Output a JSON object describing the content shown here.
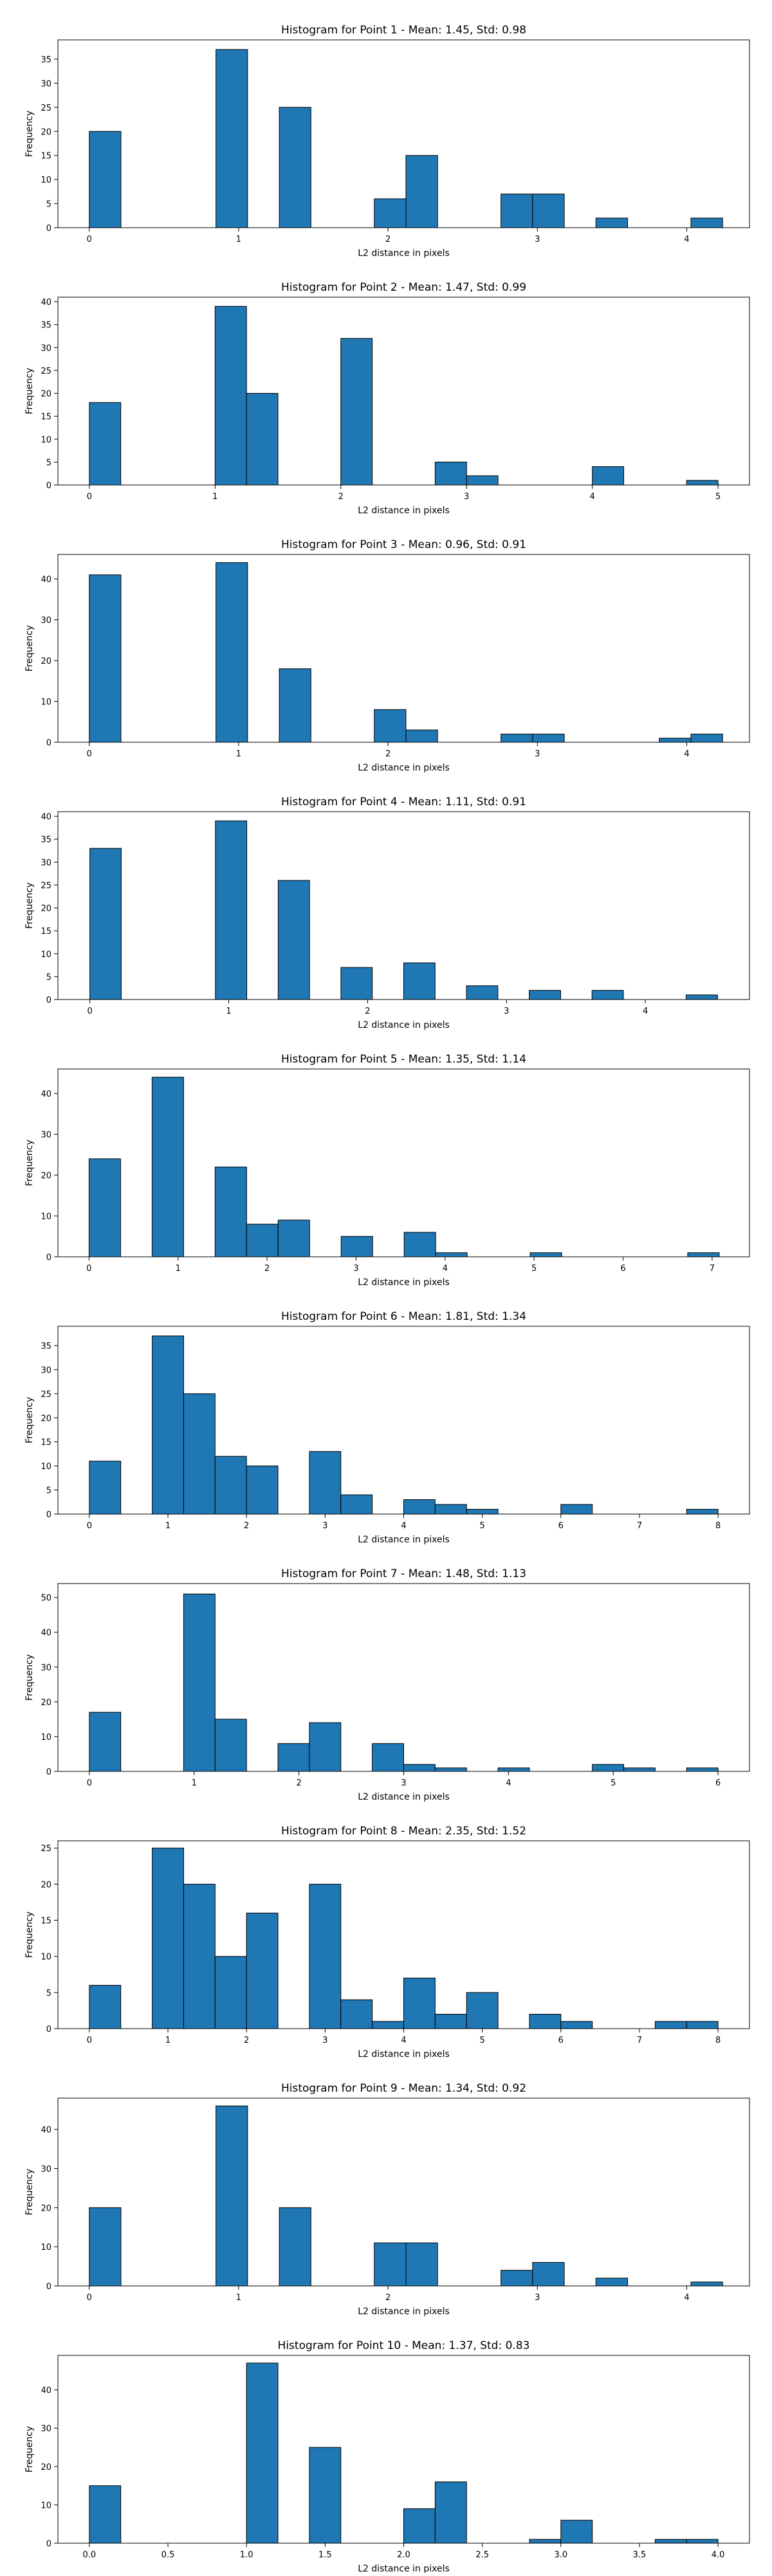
{
  "figure": {
    "background": "#ffffff",
    "bar_color": "#1f77b4",
    "edge_color": "#000000"
  },
  "chart_data": [
    {
      "type": "bar",
      "title": "Histogram for Point 1 - Mean: 1.45, Std: 0.98",
      "xlabel": "L2 distance in pixels",
      "ylabel": "Frequency",
      "xlim": [
        -0.21,
        4.42
      ],
      "ylim": [
        0,
        39
      ],
      "xticks": [
        0,
        1,
        2,
        3,
        4
      ],
      "xtick_labels": [
        "0",
        "1",
        "2",
        "3",
        "4"
      ],
      "yticks": [
        0,
        5,
        10,
        15,
        20,
        25,
        30,
        35
      ],
      "bin_edges": [
        0,
        0.212,
        0.424,
        0.636,
        0.848,
        1.06,
        1.272,
        1.484,
        1.696,
        1.908,
        2.12,
        2.332,
        2.544,
        2.756,
        2.968,
        3.18,
        3.392,
        3.604,
        3.816,
        4.028,
        4.24
      ],
      "values": [
        20,
        0,
        0,
        0,
        37,
        0,
        25,
        0,
        0,
        6,
        15,
        0,
        0,
        7,
        7,
        0,
        2,
        0,
        0,
        2
      ],
      "grid": false,
      "legend": "none"
    },
    {
      "type": "bar",
      "title": "Histogram for Point 2 - Mean: 1.47, Std: 0.99",
      "xlabel": "L2 distance in pixels",
      "ylabel": "Frequency",
      "xlim": [
        -0.25,
        5.25
      ],
      "ylim": [
        0,
        41
      ],
      "xticks": [
        0,
        1,
        2,
        3,
        4,
        5
      ],
      "xtick_labels": [
        "0",
        "1",
        "2",
        "3",
        "4",
        "5"
      ],
      "yticks": [
        0,
        5,
        10,
        15,
        20,
        25,
        30,
        35,
        40
      ],
      "bin_edges": [
        0,
        0.25,
        0.5,
        0.75,
        1,
        1.25,
        1.5,
        1.75,
        2,
        2.25,
        2.5,
        2.75,
        3,
        3.25,
        3.5,
        3.75,
        4,
        4.25,
        4.5,
        4.75,
        5
      ],
      "values": [
        18,
        0,
        0,
        0,
        39,
        20,
        0,
        0,
        32,
        0,
        0,
        5,
        2,
        0,
        0,
        0,
        4,
        0,
        0,
        1
      ],
      "grid": false,
      "legend": "none"
    },
    {
      "type": "bar",
      "title": "Histogram for Point 3 - Mean: 0.96, Std: 0.91",
      "xlabel": "L2 distance in pixels",
      "ylabel": "Frequency",
      "xlim": [
        -0.21,
        4.42
      ],
      "ylim": [
        0,
        46
      ],
      "xticks": [
        0,
        1,
        2,
        3,
        4
      ],
      "xtick_labels": [
        "0",
        "1",
        "2",
        "3",
        "4"
      ],
      "yticks": [
        0,
        10,
        20,
        30,
        40
      ],
      "bin_edges": [
        0,
        0.212,
        0.424,
        0.636,
        0.848,
        1.06,
        1.272,
        1.484,
        1.696,
        1.908,
        2.12,
        2.332,
        2.544,
        2.756,
        2.968,
        3.18,
        3.392,
        3.604,
        3.816,
        4.028,
        4.24
      ],
      "values": [
        41,
        0,
        0,
        0,
        44,
        0,
        18,
        0,
        0,
        8,
        3,
        0,
        0,
        2,
        2,
        0,
        0,
        0,
        1,
        2
      ],
      "grid": false,
      "legend": "none"
    },
    {
      "type": "bar",
      "title": "Histogram for Point 4 - Mean: 1.11, Std: 0.91",
      "xlabel": "L2 distance in pixels",
      "ylabel": "Frequency",
      "xlim": [
        -0.23,
        4.75
      ],
      "ylim": [
        0,
        41
      ],
      "xticks": [
        0,
        1,
        2,
        3,
        4
      ],
      "xtick_labels": [
        "0",
        "1",
        "2",
        "3",
        "4"
      ],
      "yticks": [
        0,
        5,
        10,
        15,
        20,
        25,
        30,
        35,
        40
      ],
      "bin_edges": [
        0,
        0.226,
        0.452,
        0.678,
        0.904,
        1.13,
        1.356,
        1.582,
        1.808,
        2.034,
        2.26,
        2.486,
        2.712,
        2.938,
        3.164,
        3.39,
        3.616,
        3.842,
        4.068,
        4.294,
        4.52
      ],
      "values": [
        33,
        0,
        0,
        0,
        39,
        0,
        26,
        0,
        7,
        0,
        8,
        0,
        3,
        0,
        2,
        0,
        2,
        0,
        0,
        1
      ],
      "grid": false,
      "legend": "none"
    },
    {
      "type": "bar",
      "title": "Histogram for Point 5 - Mean: 1.35, Std: 1.14",
      "xlabel": "L2 distance in pixels",
      "ylabel": "Frequency",
      "xlim": [
        -0.35,
        7.42
      ],
      "ylim": [
        0,
        46
      ],
      "xticks": [
        0,
        1,
        2,
        3,
        4,
        5,
        6,
        7
      ],
      "xtick_labels": [
        "0",
        "1",
        "2",
        "3",
        "4",
        "5",
        "6",
        "7"
      ],
      "yticks": [
        0,
        10,
        20,
        30,
        40
      ],
      "bin_edges": [
        0,
        0.354,
        0.708,
        1.062,
        1.416,
        1.77,
        2.124,
        2.478,
        2.832,
        3.186,
        3.54,
        3.894,
        4.248,
        4.602,
        4.956,
        5.31,
        5.664,
        6.018,
        6.372,
        6.726,
        7.08
      ],
      "values": [
        24,
        0,
        44,
        0,
        22,
        8,
        9,
        0,
        5,
        0,
        6,
        1,
        0,
        0,
        1,
        0,
        0,
        0,
        0,
        1
      ],
      "grid": false,
      "legend": "none"
    },
    {
      "type": "bar",
      "title": "Histogram for Point 6 - Mean: 1.81, Std: 1.34",
      "xlabel": "L2 distance in pixels",
      "ylabel": "Frequency",
      "xlim": [
        -0.4,
        8.4
      ],
      "ylim": [
        0,
        39
      ],
      "xticks": [
        0,
        1,
        2,
        3,
        4,
        5,
        6,
        7,
        8
      ],
      "xtick_labels": [
        "0",
        "1",
        "2",
        "3",
        "4",
        "5",
        "6",
        "7",
        "8"
      ],
      "yticks": [
        0,
        5,
        10,
        15,
        20,
        25,
        30,
        35
      ],
      "bin_edges": [
        0,
        0.4,
        0.8,
        1.2,
        1.6,
        2,
        2.4,
        2.8,
        3.2,
        3.6,
        4,
        4.4,
        4.8,
        5.2,
        5.6,
        6,
        6.4,
        6.8,
        7.2,
        7.6,
        8
      ],
      "values": [
        11,
        0,
        37,
        25,
        12,
        10,
        0,
        13,
        4,
        0,
        3,
        2,
        1,
        0,
        0,
        2,
        0,
        0,
        0,
        1
      ],
      "grid": false,
      "legend": "none"
    },
    {
      "type": "bar",
      "title": "Histogram for Point 7 - Mean: 1.48, Std: 1.13",
      "xlabel": "L2 distance in pixels",
      "ylabel": "Frequency",
      "xlim": [
        -0.3,
        6.3
      ],
      "ylim": [
        0,
        54
      ],
      "xticks": [
        0,
        1,
        2,
        3,
        4,
        5,
        6
      ],
      "xtick_labels": [
        "0",
        "1",
        "2",
        "3",
        "4",
        "5",
        "6"
      ],
      "yticks": [
        0,
        10,
        20,
        30,
        40,
        50
      ],
      "bin_edges": [
        0,
        0.3,
        0.6,
        0.9,
        1.2,
        1.5,
        1.8,
        2.1,
        2.4,
        2.7,
        3,
        3.3,
        3.6,
        3.9,
        4.2,
        4.5,
        4.8,
        5.1,
        5.4,
        5.7,
        6
      ],
      "values": [
        17,
        0,
        0,
        51,
        15,
        0,
        8,
        14,
        0,
        8,
        2,
        1,
        0,
        1,
        0,
        0,
        2,
        1,
        0,
        1
      ],
      "grid": false,
      "legend": "none"
    },
    {
      "type": "bar",
      "title": "Histogram for Point 8 - Mean: 2.35, Std: 1.52",
      "xlabel": "L2 distance in pixels",
      "ylabel": "Frequency",
      "xlim": [
        -0.4,
        8.4
      ],
      "ylim": [
        0,
        26
      ],
      "xticks": [
        0,
        1,
        2,
        3,
        4,
        5,
        6,
        7,
        8
      ],
      "xtick_labels": [
        "0",
        "1",
        "2",
        "3",
        "4",
        "5",
        "6",
        "7",
        "8"
      ],
      "yticks": [
        0,
        5,
        10,
        15,
        20,
        25
      ],
      "bin_edges": [
        0,
        0.4,
        0.8,
        1.2,
        1.6,
        2,
        2.4,
        2.8,
        3.2,
        3.6,
        4,
        4.4,
        4.8,
        5.2,
        5.6,
        6,
        6.4,
        6.8,
        7.2,
        7.6,
        8
      ],
      "values": [
        6,
        0,
        25,
        20,
        10,
        16,
        0,
        20,
        4,
        1,
        7,
        2,
        5,
        0,
        2,
        1,
        0,
        0,
        1,
        1
      ],
      "grid": false,
      "legend": "none"
    },
    {
      "type": "bar",
      "title": "Histogram for Point 9 - Mean: 1.34, Std: 0.92",
      "xlabel": "L2 distance in pixels",
      "ylabel": "Frequency",
      "xlim": [
        -0.21,
        4.42
      ],
      "ylim": [
        0,
        48
      ],
      "xticks": [
        0,
        1,
        2,
        3,
        4
      ],
      "xtick_labels": [
        "0",
        "1",
        "2",
        "3",
        "4"
      ],
      "yticks": [
        0,
        10,
        20,
        30,
        40
      ],
      "bin_edges": [
        0,
        0.212,
        0.424,
        0.636,
        0.848,
        1.06,
        1.272,
        1.484,
        1.696,
        1.908,
        2.12,
        2.332,
        2.544,
        2.756,
        2.968,
        3.18,
        3.392,
        3.604,
        3.816,
        4.028,
        4.24
      ],
      "values": [
        20,
        0,
        0,
        0,
        46,
        0,
        20,
        0,
        0,
        11,
        11,
        0,
        0,
        4,
        6,
        0,
        2,
        0,
        0,
        1
      ],
      "grid": false,
      "legend": "none"
    },
    {
      "type": "bar",
      "title": "Histogram for Point 10 - Mean: 1.37, Std: 0.83",
      "xlabel": "L2 distance in pixels",
      "ylabel": "Frequency",
      "xlim": [
        -0.2,
        4.2
      ],
      "ylim": [
        0,
        49
      ],
      "xticks": [
        0,
        0.5,
        1,
        1.5,
        2,
        2.5,
        3,
        3.5,
        4
      ],
      "xtick_labels": [
        "0.0",
        "0.5",
        "1.0",
        "1.5",
        "2.0",
        "2.5",
        "3.0",
        "3.5",
        "4.0"
      ],
      "yticks": [
        0,
        10,
        20,
        30,
        40
      ],
      "bin_edges": [
        0,
        0.2,
        0.4,
        0.6,
        0.8,
        1,
        1.2,
        1.4,
        1.6,
        1.8,
        2,
        2.2,
        2.4,
        2.6,
        2.8,
        3,
        3.2,
        3.4,
        3.6,
        3.8,
        4
      ],
      "values": [
        15,
        0,
        0,
        0,
        0,
        47,
        0,
        25,
        0,
        0,
        9,
        16,
        0,
        0,
        1,
        6,
        0,
        0,
        1,
        1
      ],
      "grid": false,
      "legend": "none"
    }
  ]
}
